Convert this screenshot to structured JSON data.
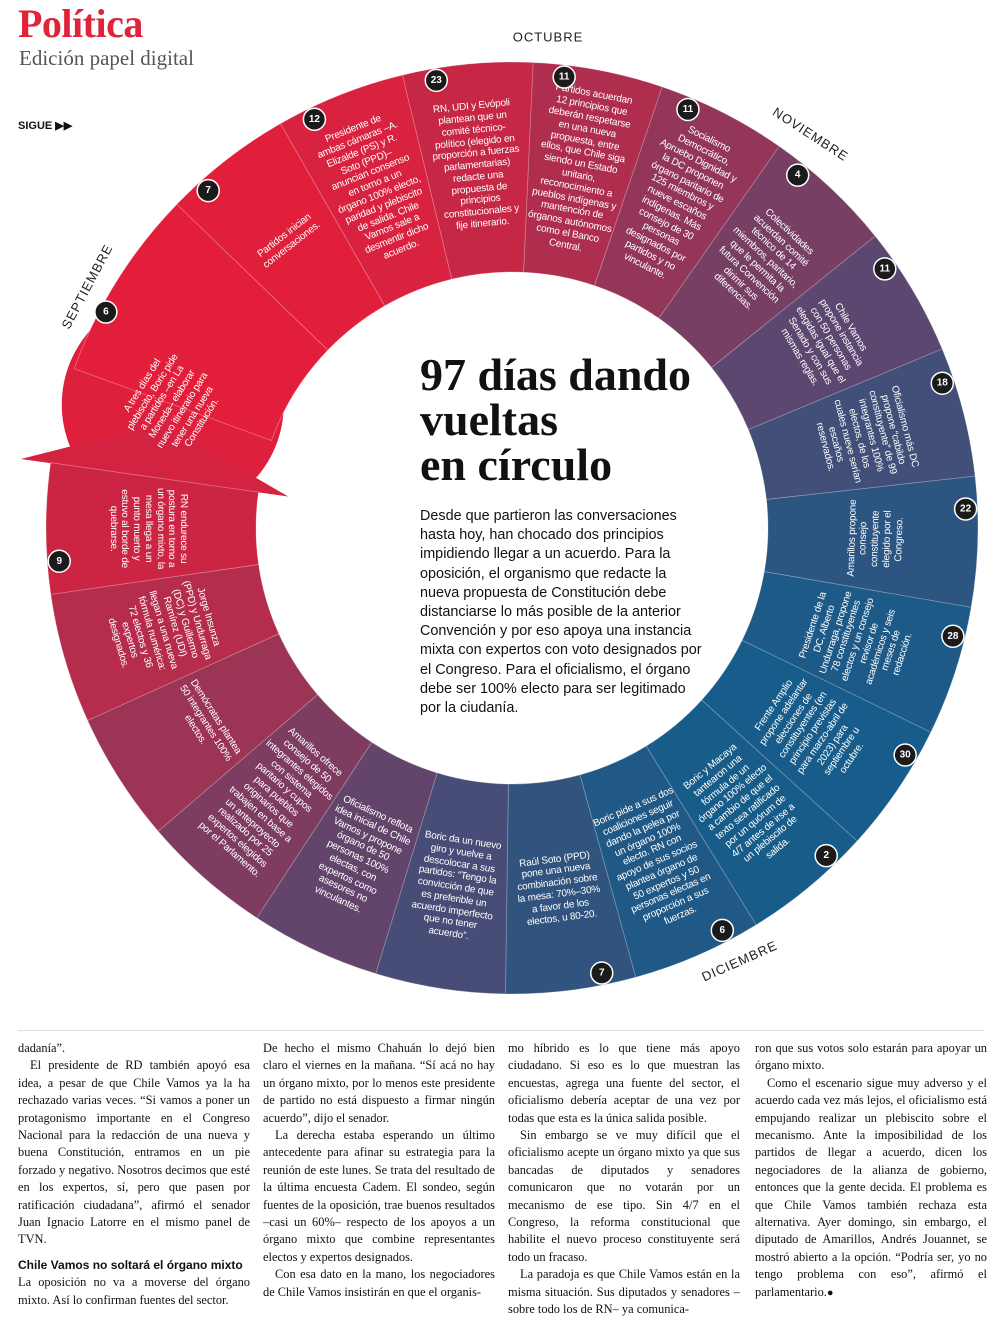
{
  "header": {
    "section": "Política",
    "edition": "Edición papel digital",
    "continue": "SIGUE ▶▶"
  },
  "infographic": {
    "title_lines": [
      "97 días dando",
      "vueltas",
      "en círculo"
    ],
    "intro": "Desde que partieron las conversaciones hasta hoy, han chocado dos principios impidiendo llegar a un acuerdo. Para la oposición, el organismo que redacte la nueva propuesta de Constitución debe distanciarse lo más posible de la anterior Convención y por eso apoya una instancia mixta con expertos con voto designados por el Congreso. Para el oficialismo, el órgano debe ser 100% electo para ser legitimado por la ciudanía.",
    "months": [
      "SEPTIEMBRE",
      "OCTUBRE",
      "NOVIEMBRE",
      "DICIEMBRE"
    ],
    "events": [
      {
        "day": 6,
        "text": "A tres días del plebiscito, Boric pide a partidos –en La Moneda– elaborar nuevo itinerario para tener una nueva Constitución."
      },
      {
        "day": 7,
        "text": "Partidos inician conversaciones."
      },
      {
        "day": 12,
        "text": "Presidente de ambas cámaras –A. Elizalde (PS) y R. Soto (PPD)– anuncian consenso en torno a un órgano 100% electo, paridad y plebiscito de salida. Chile Vamos sale a desmentir dicho acuerdo."
      },
      {
        "day": 23,
        "text": "RN, UDI y Evópoli plantean que un comité técnico-político (elegido en proporción a fuerzas parlamentarias) redacte una propuesta de principios constitucionales y fije itinerario."
      },
      {
        "day": 11,
        "text": "Partidos acuerdan 12 principios que deberán respetarse en una nueva propuesta, entre ellos, que Chile siga siendo un Estado unitario, reconocimiento a pueblos indígenas y mantención de órganos autónomos como el Banco Central."
      },
      {
        "day": 11,
        "text": "Socialismo Democrático, Apruebo Dignidad y la DC proponen órgano paritario de 125 miembros y nueve escaños indígenas. Más consejo de 30 personas designados por partidos y no vinculante."
      },
      {
        "day": 4,
        "text": "Colectividades acuerdan comité técnico de 14 miembros, paritario, que le permita la futura Convención dirimir sus diferencias."
      },
      {
        "day": 11,
        "text": "Chile Vamos propone instancia con 50 personas elegidas igual que el Senado y con sus mismas reglas."
      },
      {
        "day": 18,
        "text": "Oficialismo más DC propone “cabildo constituyente” de 99 integrantes 100% electos, de los cuales nueve serían escaños reservados."
      },
      {
        "day": 22,
        "text": "Amarillos propone consejo constituyente elegido por el Congreso."
      },
      {
        "day": 28,
        "text": "Presidente de la DC, Alberto Undurraga, propone 78 constituyentes electos y un consejo revisor de académicos y seis meses de redacción."
      },
      {
        "day": 30,
        "text": "Frente Amplio propone adelantar elecciones de constituyentes (en principio previstas para marzo-abril de 2023) para septiembre u octubre."
      },
      {
        "day": 2,
        "text": "Boric y Macaya tantearon una fórmula de un órgano 100% electo a cambio de que el texto sea ratificado por un quórum de 4/7 antes de irse a un plebiscito de salida."
      },
      {
        "day": 6,
        "text": "Boric pide a sus dos coaliciones seguir dando la pelea por un órgano 100% electo. RN con apoyo de sus socios plantea órgano de 50 expertos y 50 personas electas en proporción a sus fuerzas."
      },
      {
        "day": 7,
        "text": "Raúl Soto (PPD) pone una nueva combinación sobre la mesa: 70%–30% a favor de los electos, u 80-20."
      },
      {
        "text": "Boric da un nuevo giro y vuelve a descolocar a sus partidos: “Tengo la convicción de que es preferible un acuerdo imperfecto que no tener acuerdo”."
      },
      {
        "text": "Oficialismo reflota idea inicial de Chile Vamos y propone órgano de 50 personas 100% electas, con expertos como asesores no vinculantes."
      },
      {
        "text": "Amarillos ofrece consejo de 50 integrantes elegidos con sistema paritario y cupos para pueblos originarios que trabajen en base a un anteproyecto realizado por 25 expertos elegidos por el Parlamento."
      },
      {
        "text": "Demócratas plantea 50 integrantes 100% electos."
      },
      {
        "text": "Jorge Insunza (PPD) y Undurraga (DC) y Guillermo Ramírez (UDI) llegan a una nueva fórmula numérica: 72 electos y 36 expertos designados."
      },
      {
        "day": 9,
        "text": "RN endurece su postura en torno a un órgano mixto, la mesa llega a un punto muerto y estuvo al borde de quebrarse."
      }
    ]
  },
  "article": {
    "columns": [
      [
        {
          "text": "dadanía”."
        },
        {
          "text": "El presidente de RD también apoyó esa idea, a pesar de que Chile Vamos ya la ha rechazado varias veces. “Si vamos a poner un protagonismo importante en el Congreso Nacional para la redacción de una nueva y buena Constitución, entramos en un pie forzado y negativo. Nosotros decimos que esté en los expertos, sí, pero que pasen por ratificación ciudadana”, afirmó el senador Juan Ignacio Latorre en el mismo panel de TVN."
        },
        {
          "subhead": "Chile Vamos no soltará el órgano mixto"
        },
        {
          "text": "La oposición no va a moverse del órgano mixto. Así lo confirman fuentes del sector."
        }
      ],
      [
        {
          "text": "De hecho el mismo Chahuán lo dejó bien claro el viernes en la mañana. “Sí acá no hay un órgano mixto, por lo menos este presidente de partido no está dispuesto a firmar ningún acuerdo”, dijo el senador."
        },
        {
          "text": "La derecha estaba esperando un último antecedente para afinar su estrategia para la reunión de este lunes. Se trata del resultado de la última encuesta Cadem. El sondeo, según fuentes de la oposición, trae buenos resultados –casi un 60%– respecto de los apoyos a un órgano mixto que combine representantes electos y expertos designados."
        },
        {
          "text": "Con esa dato en la mano, los negociadores de Chile Vamos insistirán en que el organis-"
        }
      ],
      [
        {
          "text": "mo híbrido es lo que tiene más apoyo ciudadano. Si eso es lo que muestran las encuestas, agrega una fuente del sector, el oficialismo debería aceptar de una vez por todas que esta es la única salida posible."
        },
        {
          "text": "Sin embargo se ve muy difícil que el oficialismo acepte un órgano mixto ya que sus bancadas de diputados y senadores comunicaron que no votarán por un mecanismo de ese tipo. Sin 4/7 en el Congreso, la reforma constitucional que habilite el nuevo proceso constituyente será todo un fracaso."
        },
        {
          "text": "La paradoja es que Chile Vamos están en la misma situación. Sus diputados y senadores –sobre todo los de RN– ya comunica-"
        }
      ],
      [
        {
          "text": "ron que sus votos solo estarán para apoyar un órgano mixto."
        },
        {
          "text": "Como el escenario sigue muy adverso y el acuerdo cada vez más lejos, el oficialismo está empujando realizar un plebiscito sobre el mecanismo. Ante la imposibilidad de los partidos de llegar a acuerdo, dicen los negociadores de la alianza de gobierno, entonces que la gente decida. El problema es que Chile Vamos también rechaza esta alternativa. Ayer domingo, sin embargo, el diputado de Amarillos, Andrés Jouannet, se mostró abierto a la opción. “Podría ser, yo no tengo problema con eso”, afirmó el parlamentario."
        }
      ]
    ]
  }
}
